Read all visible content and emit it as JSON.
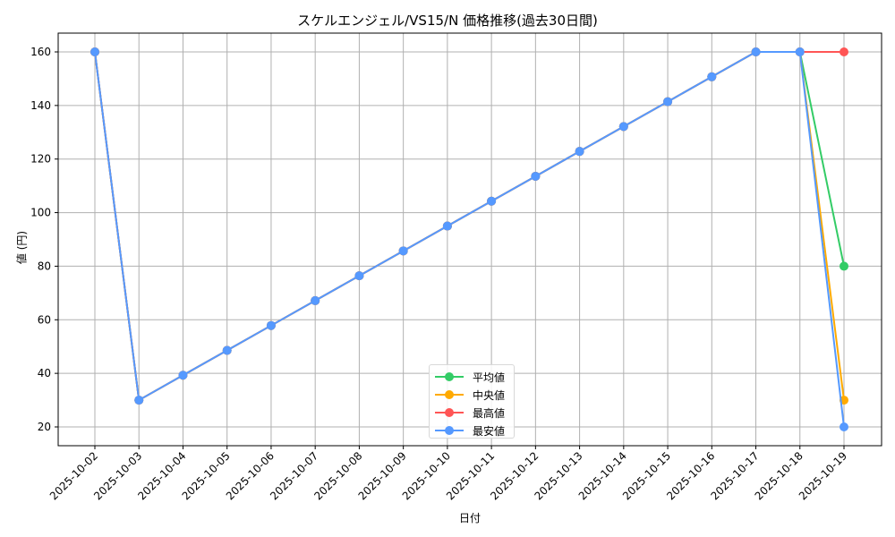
{
  "chart_data": {
    "type": "line",
    "title": "スケルエンジェル/VS15/N 価格推移(過去30日間)",
    "xlabel": "日付",
    "ylabel": "値 (円)",
    "x": [
      "2025-10-02",
      "2025-10-03",
      "2025-10-04",
      "2025-10-05",
      "2025-10-06",
      "2025-10-07",
      "2025-10-08",
      "2025-10-09",
      "2025-10-10",
      "2025-10-11",
      "2025-10-12",
      "2025-10-13",
      "2025-10-14",
      "2025-10-15",
      "2025-10-16",
      "2025-10-17",
      "2025-10-18",
      "2025-10-19"
    ],
    "series": [
      {
        "name": "平均値",
        "color": "#33cc66",
        "values": [
          160,
          30,
          39.29,
          48.57,
          57.86,
          67.14,
          76.43,
          85.71,
          95.0,
          104.29,
          113.57,
          122.86,
          132.14,
          141.43,
          150.71,
          160,
          160,
          80
        ]
      },
      {
        "name": "中央値",
        "color": "#ffaa00",
        "values": [
          160,
          30,
          39.29,
          48.57,
          57.86,
          67.14,
          76.43,
          85.71,
          95.0,
          104.29,
          113.57,
          122.86,
          132.14,
          141.43,
          150.71,
          160,
          160,
          30
        ]
      },
      {
        "name": "最高値",
        "color": "#ff5555",
        "values": [
          160,
          30,
          39.29,
          48.57,
          57.86,
          67.14,
          76.43,
          85.71,
          95.0,
          104.29,
          113.57,
          122.86,
          132.14,
          141.43,
          150.71,
          160,
          160,
          160
        ]
      },
      {
        "name": "最安値",
        "color": "#5599ff",
        "values": [
          160,
          30,
          39.29,
          48.57,
          57.86,
          67.14,
          76.43,
          85.71,
          95.0,
          104.29,
          113.57,
          122.86,
          132.14,
          141.43,
          150.71,
          160,
          160,
          20
        ]
      }
    ],
    "yticks": [
      20,
      40,
      60,
      80,
      100,
      120,
      140,
      160
    ],
    "ylim": [
      13.2,
      167
    ],
    "grid": true,
    "legend_position": "lower center"
  }
}
